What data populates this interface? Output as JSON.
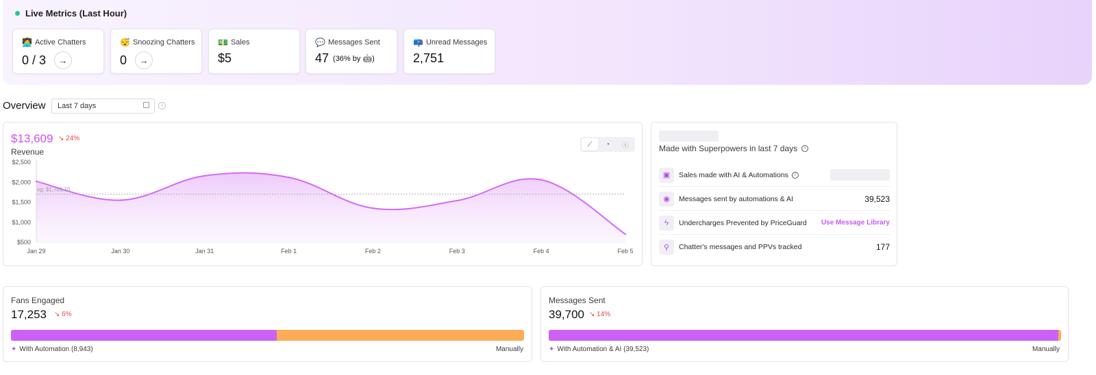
{
  "live": {
    "title": "Live Metrics (Last Hour)",
    "cards": [
      {
        "emoji": "👩‍💻",
        "label": "Active Chatters",
        "value": "0 / 3",
        "has_arrow": true
      },
      {
        "emoji": "😴",
        "label": "Snoozing Chatters",
        "value": "0",
        "has_arrow": true
      },
      {
        "emoji": "💵",
        "label": "Sales",
        "value": "$5",
        "has_arrow": false
      },
      {
        "emoji": "💬",
        "label": "Messages Sent",
        "value": "47",
        "sub": "(36% by 🤖)",
        "has_arrow": false
      },
      {
        "emoji": "📪",
        "label": "Unread Messages",
        "value": "2,751",
        "has_arrow": false
      }
    ],
    "arrow_glyph": "→"
  },
  "overview": {
    "title": "Overview",
    "date_range": "Last 7 days"
  },
  "revenue": {
    "value": "$13,609",
    "delta": "24%",
    "label": "Revenue",
    "avg_label": "vg: $1,701.10"
  },
  "chart_data": {
    "type": "area",
    "x": [
      "Jan 29",
      "Jan 30",
      "Jan 31",
      "Feb 1",
      "Feb 2",
      "Feb 3",
      "Feb 4",
      "Feb 5"
    ],
    "values": [
      2020,
      1550,
      2160,
      2120,
      1350,
      1540,
      2060,
      700
    ],
    "ylim": [
      500,
      2500
    ],
    "yticks": [
      "$2,500",
      "$2,000",
      "$1,500",
      "$1,000",
      "$500"
    ],
    "ytick_values": [
      2500,
      2000,
      1500,
      1000,
      500
    ],
    "avg": 1701.1,
    "color": "#d26af5"
  },
  "superpowers": {
    "title": "Made with Superpowers in last 7 days",
    "rows": [
      {
        "icon": "robot-gift-icon",
        "glyph": "▣",
        "label": "Sales made with AI & Automations",
        "info": true,
        "value": "",
        "type": "skeleton"
      },
      {
        "icon": "robot-icon",
        "glyph": "◉",
        "label": "Messages sent by automations & AI",
        "info": false,
        "value": "39,523",
        "type": "value"
      },
      {
        "icon": "lightning-icon",
        "glyph": "ϟ",
        "label": "Undercharges Prevented by PriceGuard",
        "info": false,
        "value": "Use Message Library",
        "type": "link"
      },
      {
        "icon": "user-search-icon",
        "glyph": "⚲",
        "label": "Chatter's messages and PPVs tracked",
        "info": false,
        "value": "177",
        "type": "value"
      }
    ]
  },
  "fans": {
    "label": "Fans Engaged",
    "value": "17,253",
    "delta": "6%",
    "automation_fraction": 0.518,
    "foot_left": "With Automation (8,943)",
    "foot_right": "Manually"
  },
  "messages": {
    "label": "Messages Sent",
    "value": "39,700",
    "delta": "14%",
    "automation_fraction": 0.995,
    "foot_left": "With Automation & AI (39,523)",
    "foot_right": "Manually"
  },
  "colors": {
    "automation": "#cc62f5",
    "manual": "#fdad57",
    "negative": "#e5484d",
    "live_dot": "#22c993"
  }
}
